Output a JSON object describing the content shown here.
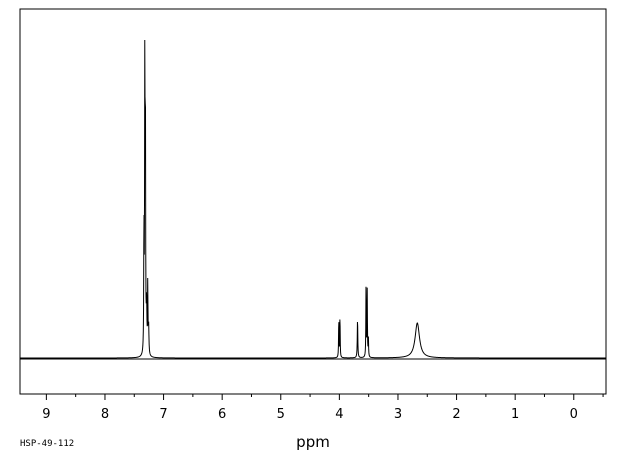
{
  "chart_data": {
    "type": "line",
    "title": "",
    "xlabel": "ppm",
    "ylabel": "",
    "sample_id": "HSP-49-112",
    "xlim": [
      9.45,
      -0.55
    ],
    "x_reversed": true,
    "ylim": [
      0,
      1.0
    ],
    "grid": false,
    "line_color": "#000000",
    "x_ticks": [
      9,
      8,
      7,
      6,
      5,
      4,
      3,
      2,
      1,
      0
    ],
    "peaks": [
      {
        "ppm": 7.32,
        "height": 1.0,
        "width": 0.004
      },
      {
        "ppm": 7.31,
        "height": 0.77,
        "width": 0.004
      },
      {
        "ppm": 7.335,
        "height": 0.4,
        "width": 0.004
      },
      {
        "ppm": 7.29,
        "height": 0.15,
        "width": 0.006
      },
      {
        "ppm": 7.27,
        "height": 0.22,
        "width": 0.004
      },
      {
        "ppm": 7.255,
        "height": 0.09,
        "width": 0.006
      },
      {
        "ppm": 3.99,
        "height": 0.135,
        "width": 0.004
      },
      {
        "ppm": 4.01,
        "height": 0.125,
        "width": 0.004
      },
      {
        "ppm": 3.69,
        "height": 0.125,
        "width": 0.005
      },
      {
        "ppm": 3.545,
        "height": 0.225,
        "width": 0.004
      },
      {
        "ppm": 3.525,
        "height": 0.21,
        "width": 0.004
      },
      {
        "ppm": 3.505,
        "height": 0.06,
        "width": 0.004
      },
      {
        "ppm": 2.67,
        "height": 0.11,
        "width": 0.045
      }
    ]
  }
}
